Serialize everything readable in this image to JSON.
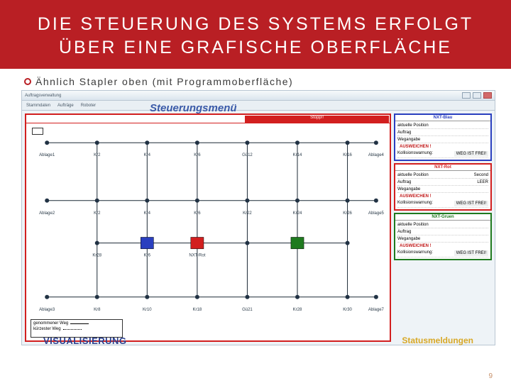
{
  "slide": {
    "title": "DIE STEUERUNG DES SYSTEMS ERFOLGT ÜBER EINE GRAFISCHE OBERFLÄCHE",
    "bullet": "Ähnlich Stapler oben (mit Programmoberfläche)",
    "number": "9"
  },
  "window": {
    "title": "Auftragsverwaltung",
    "tabs": [
      "Stammdaten",
      "Aufträge",
      "Roboter"
    ],
    "menu_label": "Steuerungsmenü",
    "stop_label": "Stopp!!"
  },
  "labels": {
    "visualisierung": "VISUALISIERUNG",
    "statusmeldungen": "Statusmeldungen"
  },
  "legend": {
    "solid": "genommener Weg",
    "dotted": "kürzester Weg"
  },
  "grid": {
    "cols_pct": [
      5,
      19,
      33,
      47,
      61,
      75,
      89,
      97
    ],
    "rows_pct": [
      10,
      40,
      62,
      90
    ],
    "nodes": [
      {
        "r": 0,
        "c": 0,
        "lbl": "Ablage1"
      },
      {
        "r": 0,
        "c": 1,
        "lbl": "Kr2"
      },
      {
        "r": 0,
        "c": 2,
        "lbl": "Kr4"
      },
      {
        "r": 0,
        "c": 3,
        "lbl": "Kr6"
      },
      {
        "r": 0,
        "c": 4,
        "lbl": "Gü12"
      },
      {
        "r": 0,
        "c": 5,
        "lbl": "Kr14"
      },
      {
        "r": 0,
        "c": 6,
        "lbl": "Kr16"
      },
      {
        "r": 0,
        "c": 7,
        "lbl": "Ablage4"
      },
      {
        "r": 1,
        "c": 0,
        "lbl": "Ablage2"
      },
      {
        "r": 1,
        "c": 1,
        "lbl": "Kr2"
      },
      {
        "r": 1,
        "c": 2,
        "lbl": "Kr4"
      },
      {
        "r": 1,
        "c": 3,
        "lbl": "Kr6"
      },
      {
        "r": 1,
        "c": 4,
        "lbl": "Kr22"
      },
      {
        "r": 1,
        "c": 5,
        "lbl": "Kr24"
      },
      {
        "r": 1,
        "c": 6,
        "lbl": "Kr26"
      },
      {
        "r": 1,
        "c": 7,
        "lbl": "Ablage5"
      },
      {
        "r": 2,
        "c": 1,
        "lbl": "Kr28"
      },
      {
        "r": 2,
        "c": 2,
        "lbl": "Kr6"
      },
      {
        "r": 2,
        "c": 3,
        "lbl": "NXT-Rot",
        "color": "#d21f1f"
      },
      {
        "r": 2,
        "c": 4,
        "lbl": ""
      },
      {
        "r": 2,
        "c": 5,
        "lbl": "",
        "color": "#1f7a1f"
      },
      {
        "r": 2,
        "c": 6,
        "lbl": ""
      },
      {
        "r": 3,
        "c": 0,
        "lbl": "Ablage3"
      },
      {
        "r": 3,
        "c": 1,
        "lbl": "Kr8"
      },
      {
        "r": 3,
        "c": 2,
        "lbl": "Kr10"
      },
      {
        "r": 3,
        "c": 3,
        "lbl": "Kr18"
      },
      {
        "r": 3,
        "c": 4,
        "lbl": "Gü21"
      },
      {
        "r": 3,
        "c": 5,
        "lbl": "Kr28"
      },
      {
        "r": 3,
        "c": 6,
        "lbl": "Kr30"
      },
      {
        "r": 3,
        "c": 7,
        "lbl": "Ablage7"
      }
    ],
    "blue_box": {
      "row_pct": 62,
      "col_pct": 33,
      "color": "#2a3fbf"
    },
    "edges_h": [
      [
        0,
        0,
        7
      ],
      [
        1,
        0,
        7
      ],
      [
        2,
        1,
        6
      ],
      [
        3,
        0,
        7
      ]
    ],
    "edges_v": [
      [
        1,
        0,
        3
      ],
      [
        2,
        0,
        3
      ],
      [
        3,
        0,
        3
      ],
      [
        4,
        0,
        3
      ],
      [
        5,
        0,
        3
      ],
      [
        6,
        0,
        3
      ]
    ]
  },
  "panels": [
    {
      "title": "NXT-Blau",
      "border": "#2a3fbf",
      "rows": [
        [
          "aktuelle Position",
          ""
        ],
        [
          "Auftrag",
          ""
        ],
        [
          "Wegangabe",
          ""
        ]
      ],
      "ausw": "AUSWEICHEN !",
      "wegfrei": "WEG IST FREI!",
      "kollision": "Kollisionswarnung:"
    },
    {
      "title": "NXT-Rot",
      "border": "#d21f1f",
      "rows": [
        [
          "aktuelle Position",
          "Second"
        ],
        [
          "Auftrag",
          "LEER"
        ],
        [
          "Wegangabe",
          ""
        ]
      ],
      "ausw": "AUSWEICHEN !",
      "wegfrei": "WEG IST FREI!",
      "kollision": "Kollisionswarnung:"
    },
    {
      "title": "NXT-Gruen",
      "border": "#1f7a1f",
      "rows": [
        [
          "aktuelle Position",
          ""
        ],
        [
          "Auftrag",
          ""
        ],
        [
          "Wegangabe",
          ""
        ]
      ],
      "ausw": "AUSWEICHEN !",
      "wegfrei": "WEG IST FREI!",
      "kollision": "Kollisionswarnung:"
    }
  ]
}
